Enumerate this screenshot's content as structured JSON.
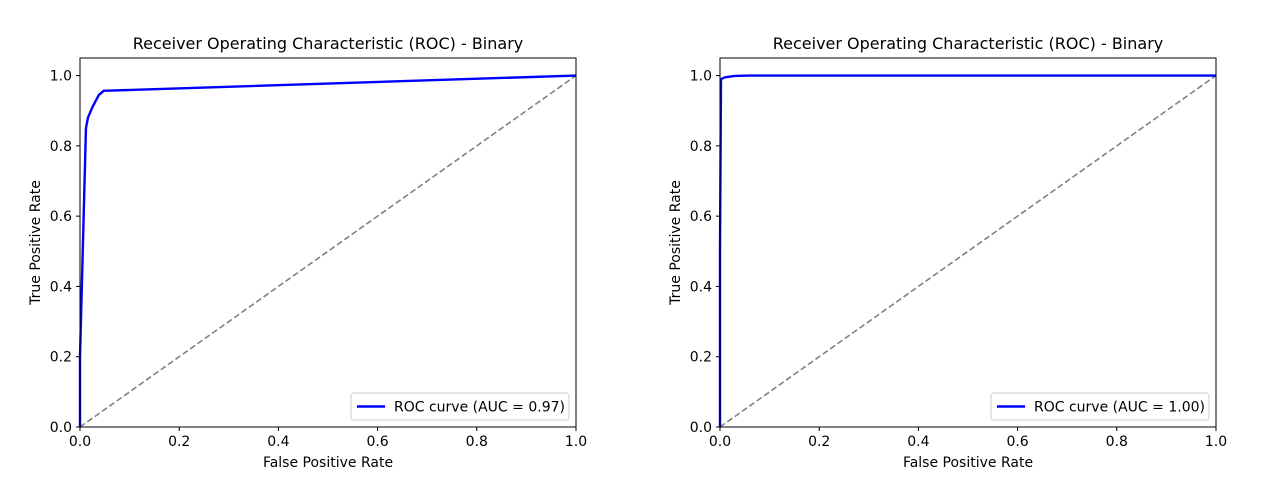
{
  "chart_data": [
    {
      "type": "line",
      "title": "Receiver Operating Characteristic (ROC) - Binary",
      "xlabel": "False Positive Rate",
      "ylabel": "True Positive Rate",
      "xlim": [
        0.0,
        1.0
      ],
      "ylim": [
        0.0,
        1.05
      ],
      "x_ticks": [
        "0.0",
        "0.2",
        "0.4",
        "0.6",
        "0.8",
        "1.0"
      ],
      "y_ticks": [
        "0.0",
        "0.2",
        "0.4",
        "0.6",
        "0.8",
        "1.0"
      ],
      "grid": false,
      "legend_position": "lower-right",
      "series": [
        {
          "name": "ROC curve (AUC = 0.97)",
          "color": "#0000ff",
          "style": "solid",
          "x": [
            0.0,
            0.0,
            0.012,
            0.016,
            0.025,
            0.038,
            0.048,
            0.055,
            1.0
          ],
          "y": [
            0.0,
            0.2,
            0.85,
            0.88,
            0.91,
            0.945,
            0.957,
            0.957,
            1.0
          ]
        },
        {
          "name": "",
          "color": "#808080",
          "style": "dashed",
          "x": [
            0.0,
            1.0
          ],
          "y": [
            0.0,
            1.0
          ]
        }
      ]
    },
    {
      "type": "line",
      "title": "Receiver Operating Characteristic (ROC) - Binary",
      "xlabel": "False Positive Rate",
      "ylabel": "True Positive Rate",
      "xlim": [
        0.0,
        1.0
      ],
      "ylim": [
        0.0,
        1.05
      ],
      "x_ticks": [
        "0.0",
        "0.2",
        "0.4",
        "0.6",
        "0.8",
        "1.0"
      ],
      "y_ticks": [
        "0.0",
        "0.2",
        "0.4",
        "0.6",
        "0.8",
        "1.0"
      ],
      "grid": false,
      "legend_position": "lower-right",
      "series": [
        {
          "name": "ROC curve (AUC = 1.00)",
          "color": "#0000ff",
          "style": "solid",
          "x": [
            0.0,
            0.0,
            0.002,
            0.01,
            0.03,
            0.06,
            1.0
          ],
          "y": [
            0.0,
            0.5,
            0.99,
            0.995,
            0.999,
            1.0,
            1.0
          ]
        },
        {
          "name": "",
          "color": "#808080",
          "style": "dashed",
          "x": [
            0.0,
            1.0
          ],
          "y": [
            0.0,
            1.0
          ]
        }
      ]
    }
  ]
}
